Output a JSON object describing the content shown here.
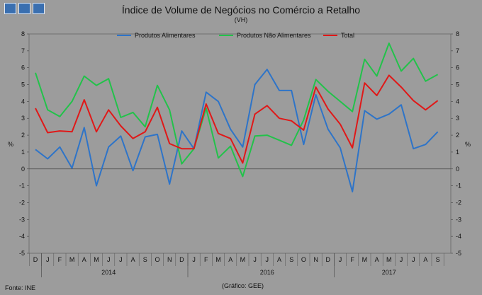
{
  "title": "Índice de Volume de Negócios no Comércio a Retalho",
  "subtitle": "(VH)",
  "footer": {
    "source": "Fonte: INE",
    "credit": "(Gráfico: GEE)"
  },
  "chart_data": {
    "type": "line",
    "ylabel_left": "%",
    "ylabel_right": "%",
    "ylim": [
      -5,
      8
    ],
    "yticks": [
      -5,
      -4,
      -3,
      -2,
      -1,
      0,
      1,
      2,
      3,
      4,
      5,
      6,
      7,
      8
    ],
    "legend_placement": "top",
    "x_month_labels": [
      "D",
      "J",
      "F",
      "M",
      "A",
      "M",
      "J",
      "J",
      "A",
      "S",
      "O",
      "N",
      "D",
      "J",
      "F",
      "M",
      "A",
      "M",
      "J",
      "J",
      "A",
      "S",
      "O",
      "N",
      "D",
      "J",
      "F",
      "M",
      "A",
      "M",
      "J",
      "J",
      "A",
      "S"
    ],
    "year_labels": [
      {
        "label": "2014",
        "month_index": 6
      },
      {
        "label": "2016",
        "month_index": 19
      },
      {
        "label": "2017",
        "month_index": 29
      }
    ],
    "series": [
      {
        "name": "Produtos Alimentares",
        "color": "#2e74c8",
        "values": [
          1.15,
          0.6,
          1.3,
          0.05,
          2.45,
          -1.0,
          1.3,
          1.95,
          -0.1,
          1.9,
          2.05,
          -0.9,
          2.25,
          1.2,
          4.55,
          4.0,
          2.35,
          1.3,
          5.0,
          5.9,
          4.65,
          4.65,
          1.45,
          4.4,
          2.35,
          1.25,
          -1.35,
          3.45,
          2.95,
          3.25,
          3.8,
          1.2,
          1.45,
          2.2
        ]
      },
      {
        "name": "Produtos Não Alimentares",
        "color": "#22c24a",
        "values": [
          5.7,
          3.5,
          3.1,
          4.0,
          5.5,
          4.95,
          5.35,
          3.05,
          3.35,
          2.5,
          4.95,
          3.5,
          0.3,
          1.2,
          3.6,
          0.65,
          1.35,
          -0.45,
          1.95,
          2.0,
          1.7,
          1.4,
          2.9,
          5.3,
          4.6,
          4.0,
          3.4,
          6.5,
          5.5,
          7.45,
          5.8,
          6.55,
          5.2,
          5.6
        ]
      },
      {
        "name": "Total",
        "color": "#e01818",
        "values": [
          3.6,
          2.15,
          2.25,
          2.2,
          4.1,
          2.2,
          3.5,
          2.55,
          1.8,
          2.2,
          3.65,
          1.5,
          1.2,
          1.2,
          3.85,
          2.1,
          1.8,
          0.35,
          3.25,
          3.75,
          3.0,
          2.85,
          2.3,
          4.85,
          3.55,
          2.65,
          1.25,
          5.1,
          4.35,
          5.55,
          4.85,
          4.05,
          3.5,
          4.05
        ]
      }
    ]
  }
}
